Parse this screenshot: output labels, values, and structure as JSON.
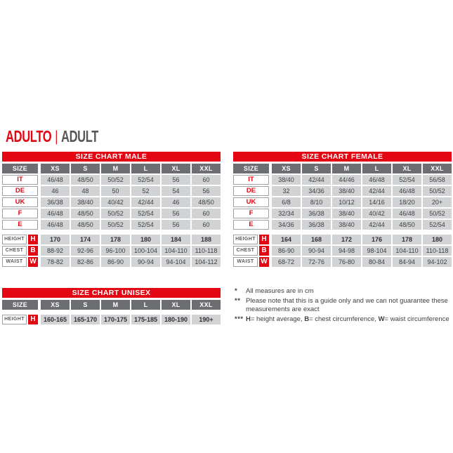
{
  "page": {
    "title_primary": "ADULTO",
    "title_divider": "|",
    "title_secondary": "ADULT"
  },
  "colors": {
    "accent_red": "#e30613",
    "header_gray": "#6d6e71",
    "cell_gray": "#d2d3d4",
    "label_border_gray": "#9d9fa2",
    "text_dark": "#3f4042",
    "title_gray": "#58585a"
  },
  "tables": [
    {
      "id": "male",
      "title": "SIZE CHART MALE",
      "columns": [
        "SIZE",
        "XS",
        "S",
        "M",
        "L",
        "XL",
        "XXL"
      ],
      "size_rows": [
        {
          "label": "IT",
          "values": [
            "46/48",
            "48/50",
            "50/52",
            "52/54",
            "56",
            "60"
          ]
        },
        {
          "label": "DE",
          "values": [
            "46",
            "48",
            "50",
            "52",
            "54",
            "56"
          ]
        },
        {
          "label": "UK",
          "values": [
            "36/38",
            "38/40",
            "40/42",
            "42/44",
            "46",
            "48/50"
          ]
        },
        {
          "label": "F",
          "values": [
            "46/48",
            "48/50",
            "50/52",
            "52/54",
            "56",
            "60"
          ]
        },
        {
          "label": "E",
          "values": [
            "46/48",
            "48/50",
            "50/52",
            "52/54",
            "56",
            "60"
          ]
        }
      ],
      "measure_rows": [
        {
          "label": "HEIGHT",
          "letter": "H",
          "bold": true,
          "values": [
            "170",
            "174",
            "178",
            "180",
            "184",
            "188"
          ]
        },
        {
          "label": "CHEST",
          "letter": "B",
          "bold": false,
          "values": [
            "88-92",
            "92-96",
            "96-100",
            "100-104",
            "104-110",
            "110-118"
          ]
        },
        {
          "label": "WAIST",
          "letter": "W",
          "bold": false,
          "values": [
            "78-82",
            "82-86",
            "86-90",
            "90-94",
            "94-104",
            "104-112"
          ]
        }
      ]
    },
    {
      "id": "female",
      "title": "SIZE CHART FEMALE",
      "columns": [
        "SIZE",
        "XS",
        "S",
        "M",
        "L",
        "XL",
        "XXL"
      ],
      "size_rows": [
        {
          "label": "IT",
          "values": [
            "38/40",
            "42/44",
            "44/46",
            "46/48",
            "52/54",
            "56/58"
          ]
        },
        {
          "label": "DE",
          "values": [
            "32",
            "34/36",
            "38/40",
            "42/44",
            "46/48",
            "50/52"
          ]
        },
        {
          "label": "UK",
          "values": [
            "6/8",
            "8/10",
            "10/12",
            "14/16",
            "18/20",
            "20+"
          ]
        },
        {
          "label": "F",
          "values": [
            "32/34",
            "36/38",
            "38/40",
            "40/42",
            "46/48",
            "50/52"
          ]
        },
        {
          "label": "E",
          "values": [
            "34/36",
            "36/38",
            "38/40",
            "42/44",
            "48/50",
            "52/54"
          ]
        }
      ],
      "measure_rows": [
        {
          "label": "HEIGHT",
          "letter": "H",
          "bold": true,
          "values": [
            "164",
            "168",
            "172",
            "176",
            "178",
            "180"
          ]
        },
        {
          "label": "CHEST",
          "letter": "B",
          "bold": false,
          "values": [
            "86-90",
            "90-94",
            "94-98",
            "98-104",
            "104-110",
            "110-118"
          ]
        },
        {
          "label": "WAIST",
          "letter": "W",
          "bold": false,
          "values": [
            "68-72",
            "72-76",
            "76-80",
            "80-84",
            "84-94",
            "94-102"
          ]
        }
      ]
    },
    {
      "id": "unisex",
      "title": "SIZE CHART UNISEX",
      "columns": [
        "SIZE",
        "XS",
        "S",
        "M",
        "L",
        "XL",
        "XXL"
      ],
      "size_rows": [],
      "measure_rows": [
        {
          "label": "HEIGHT",
          "letter": "H",
          "bold": true,
          "values": [
            "160-165",
            "165-170",
            "170-175",
            "175-185",
            "180-190",
            "190+"
          ]
        }
      ]
    }
  ],
  "footnotes": [
    {
      "marker": "*",
      "parts": [
        {
          "text": "All measures are in cm",
          "bold": false
        }
      ]
    },
    {
      "marker": "**",
      "parts": [
        {
          "text": "Please note that this is a guide only and we can not guarantee these measurements are exact",
          "bold": false
        }
      ]
    },
    {
      "marker": "***",
      "parts": [
        {
          "text": "H",
          "bold": true
        },
        {
          "text": "= height average, ",
          "bold": false
        },
        {
          "text": "B",
          "bold": true
        },
        {
          "text": "= chest circumference, ",
          "bold": false
        },
        {
          "text": "W",
          "bold": true
        },
        {
          "text": "= waist circumference",
          "bold": false
        }
      ]
    }
  ]
}
